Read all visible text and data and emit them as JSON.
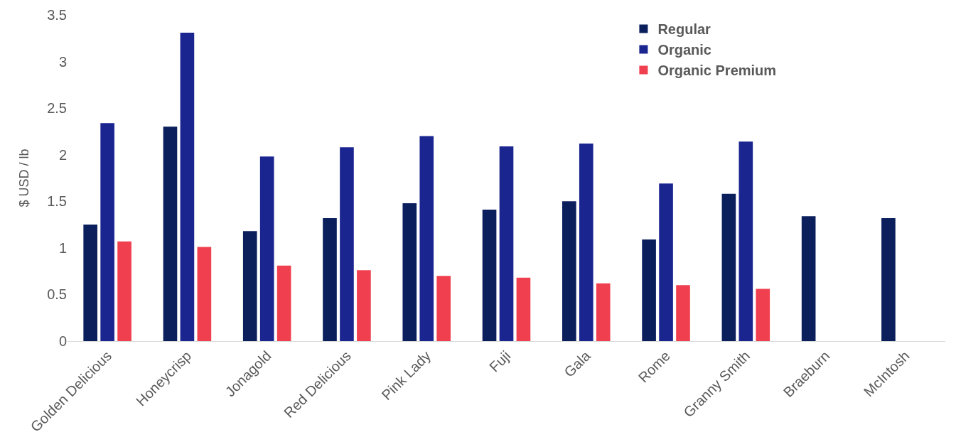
{
  "chart_data": {
    "type": "bar",
    "ylabel": "$ USD / lb",
    "categories": [
      "Golden Delicious",
      "Honeycrisp",
      "Jonagold",
      "Red Delicious",
      "Pink Lady",
      "Fuji",
      "Gala",
      "Rome",
      "Granny Smith",
      "Braeburn",
      "McIntosh"
    ],
    "series": [
      {
        "name": "Regular",
        "color": "#0a1f5c",
        "values": [
          1.25,
          2.3,
          1.18,
          1.32,
          1.48,
          1.41,
          1.5,
          1.09,
          1.58,
          1.34,
          1.32
        ]
      },
      {
        "name": "Organic",
        "color": "#1a2590",
        "values": [
          2.34,
          3.31,
          1.98,
          2.08,
          2.2,
          2.09,
          2.12,
          1.69,
          2.14,
          null,
          null
        ]
      },
      {
        "name": "Organic Premium",
        "color": "#f0404f",
        "values": [
          1.07,
          1.01,
          0.81,
          0.76,
          0.7,
          0.68,
          0.62,
          0.6,
          0.56,
          null,
          null
        ]
      }
    ],
    "ylim": [
      0,
      3.5
    ],
    "yticks": [
      0,
      0.5,
      1,
      1.5,
      2,
      2.5,
      3,
      3.5
    ],
    "grid": false,
    "legend": "top right"
  }
}
